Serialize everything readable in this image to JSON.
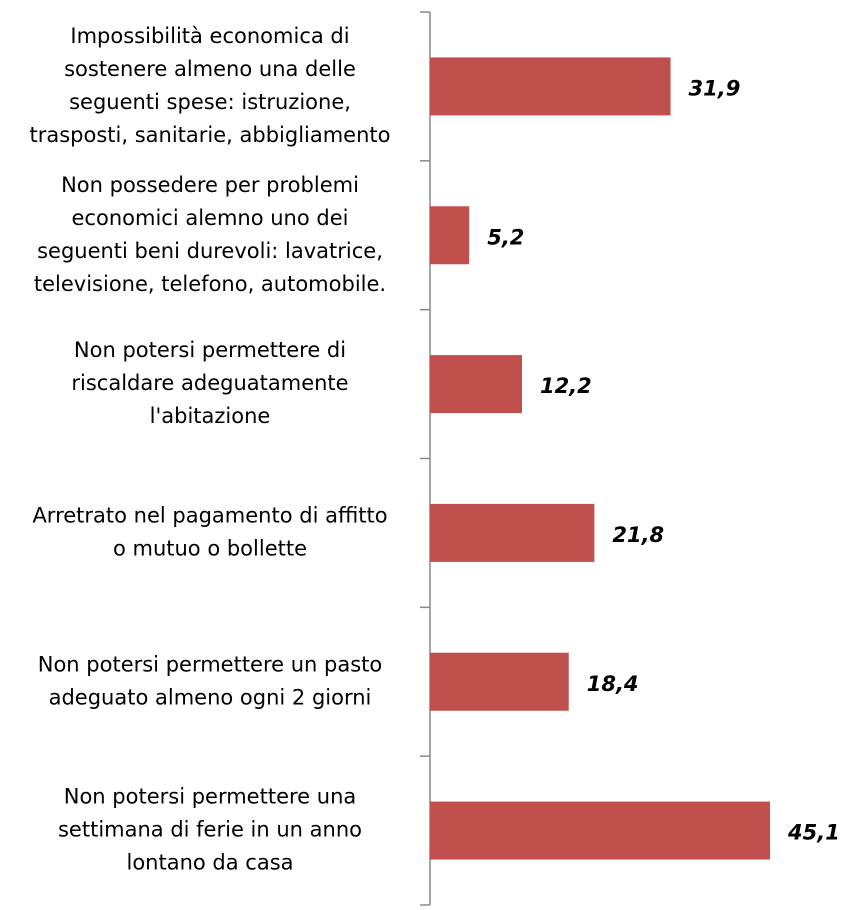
{
  "chart_data": {
    "type": "bar",
    "orientation": "horizontal",
    "categories": [
      [
        "Impossibilità  economica di",
        "sostenere almeno una delle",
        "seguenti spese: istruzione,",
        "trasposti, sanitarie, abbigliamento"
      ],
      [
        "Non possedere per problemi",
        "economici alemno uno dei",
        "seguenti beni durevoli: lavatrice,",
        "televisione, telefono, automobile."
      ],
      [
        "Non potersi permettere di",
        "riscaldare adeguatamente",
        "l'abitazione"
      ],
      [
        "Arretrato nel pagamento  di affitto",
        "o mutuo  o bollette"
      ],
      [
        "Non potersi permettere un pasto",
        "adeguato almeno ogni 2 giorni"
      ],
      [
        "Non potersi permettere una",
        "settimana di ferie in un anno",
        "lontano da casa"
      ]
    ],
    "values": [
      31.9,
      5.2,
      12.2,
      21.8,
      18.4,
      45.1
    ],
    "value_labels": [
      "31,9",
      "5,2",
      "12,2",
      "21,8",
      "18,4",
      "45,1"
    ],
    "color": "#c0504d",
    "xlim": [
      0,
      50
    ]
  }
}
